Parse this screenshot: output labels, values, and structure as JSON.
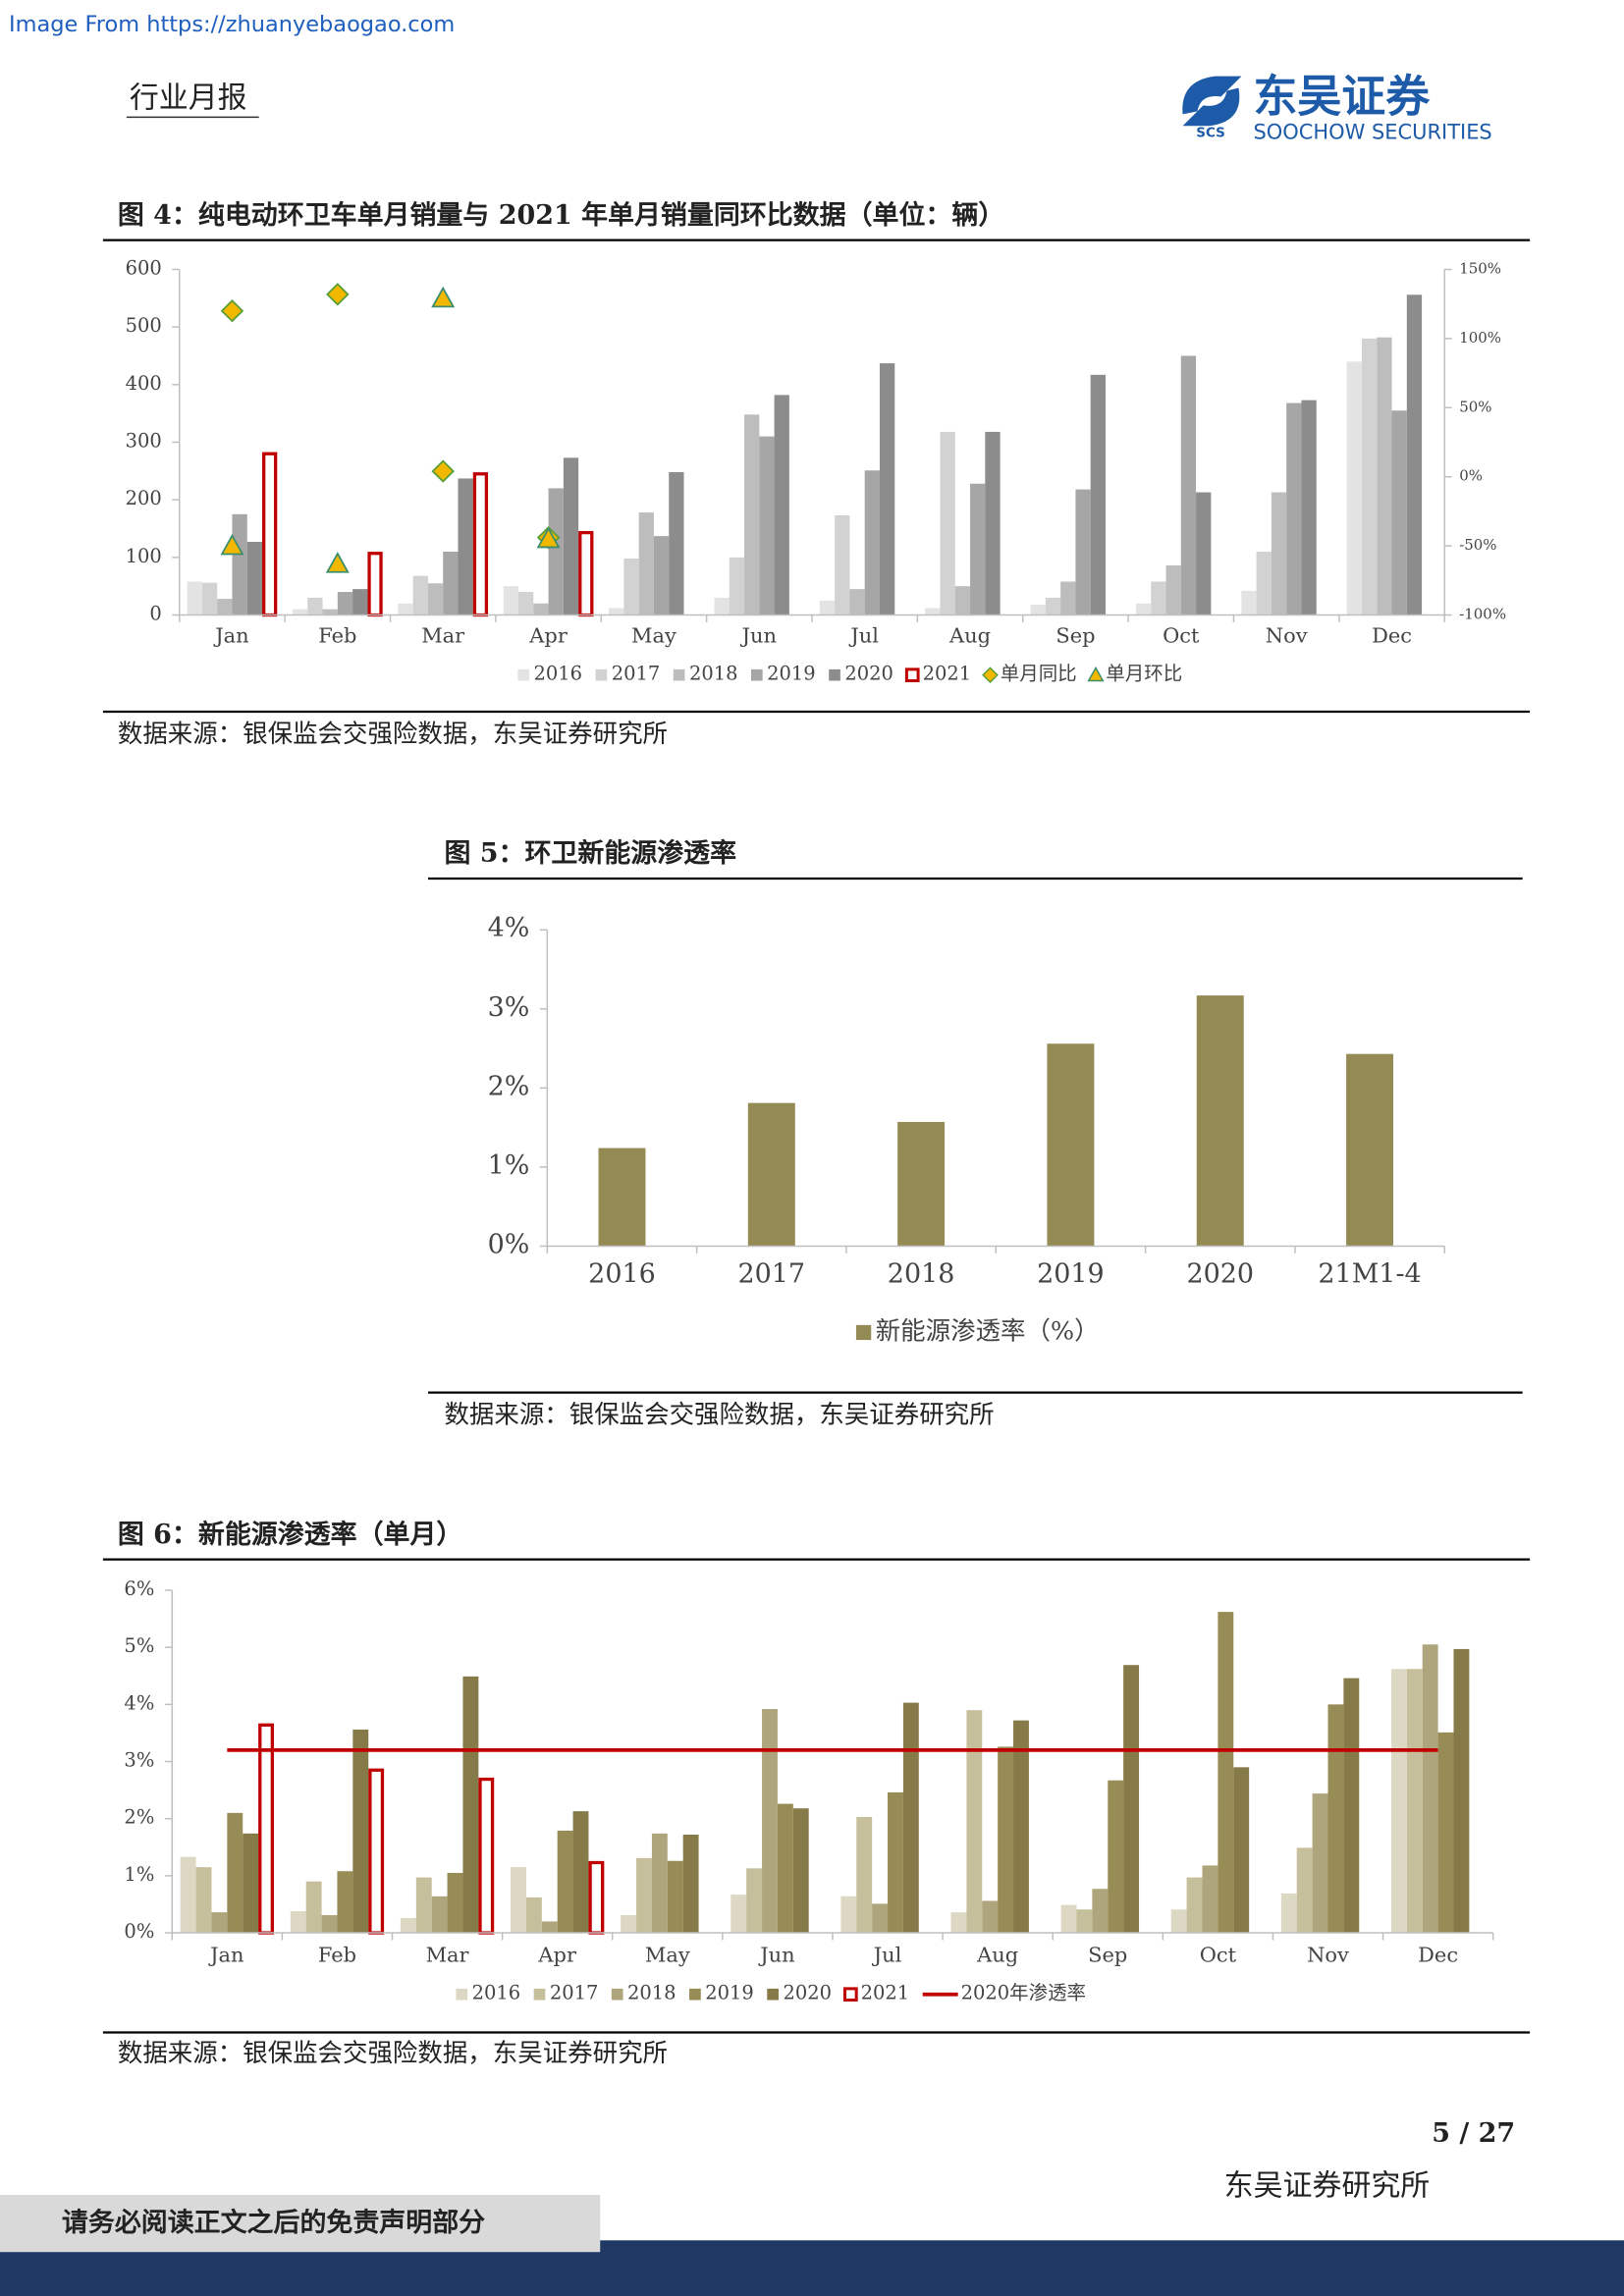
{
  "header": {
    "source_note": "Image From https://zhuanyebaogao.com",
    "report_type": "行业月报",
    "logo_cn": "东吴证券",
    "logo_en": "SOOCHOW SECURITIES",
    "logo_mark": "SCS"
  },
  "chart_data": [
    {
      "type": "bar",
      "title": "图 4：纯电动环卫车单月销量与 2021 年单月销量同环比数据（单位：辆）",
      "source": "数据来源：银保监会交强险数据，东吴证券研究所",
      "categories": [
        "Jan",
        "Feb",
        "Mar",
        "Apr",
        "May",
        "Jun",
        "Jul",
        "Aug",
        "Sep",
        "Oct",
        "Nov",
        "Dec"
      ],
      "ylim": [
        0,
        600
      ],
      "yticks": [
        0,
        100,
        200,
        300,
        400,
        500,
        600
      ],
      "y2lim": [
        -100,
        150
      ],
      "y2ticks": [
        {
          "value": -100,
          "label": "-100%"
        },
        {
          "value": -50,
          "label": "-50%"
        },
        {
          "value": 0,
          "label": "0%"
        },
        {
          "value": 50,
          "label": "50%"
        },
        {
          "value": 100,
          "label": "100%"
        },
        {
          "value": 150,
          "label": "150%"
        }
      ],
      "series": [
        {
          "name": "2016",
          "kind": "bar",
          "color": "#e3e3e3",
          "values": [
            58,
            10,
            20,
            50,
            12,
            30,
            25,
            12,
            18,
            20,
            42,
            440
          ]
        },
        {
          "name": "2017",
          "kind": "bar",
          "color": "#d2d2d2",
          "values": [
            56,
            30,
            68,
            40,
            98,
            100,
            173,
            318,
            30,
            58,
            110,
            480
          ]
        },
        {
          "name": "2018",
          "kind": "bar",
          "color": "#bdbdbd",
          "values": [
            28,
            10,
            55,
            20,
            178,
            348,
            45,
            50,
            58,
            86,
            213,
            482
          ]
        },
        {
          "name": "2019",
          "kind": "bar",
          "color": "#a6a6a6",
          "values": [
            175,
            40,
            110,
            220,
            137,
            310,
            251,
            228,
            218,
            450,
            368,
            355
          ]
        },
        {
          "name": "2020",
          "kind": "bar",
          "color": "#8c8c8c",
          "values": [
            127,
            45,
            237,
            273,
            248,
            382,
            437,
            318,
            417,
            213,
            373,
            556
          ]
        },
        {
          "name": "2021",
          "kind": "bar",
          "outline": true,
          "color": "#c00000",
          "values": [
            280,
            107,
            245,
            143,
            null,
            null,
            null,
            null,
            null,
            null,
            null,
            null
          ]
        },
        {
          "name": "单月同比",
          "kind": "scatter",
          "marker": "diamond",
          "axis": "y2",
          "color": "#f2b800",
          "edge": "#5a9e3a",
          "values": [
            120,
            132,
            4,
            -44,
            null,
            null,
            null,
            null,
            null,
            null,
            null,
            null
          ]
        },
        {
          "name": "单月环比",
          "kind": "scatter",
          "marker": "triangle",
          "axis": "y2",
          "color": "#f2b800",
          "edge": "#3b8f6e",
          "values": [
            -50,
            -63,
            129,
            -45,
            null,
            null,
            null,
            null,
            null,
            null,
            null,
            null
          ]
        }
      ]
    },
    {
      "type": "bar",
      "title": "图 5：环卫新能源渗透率",
      "source": "数据来源：银保监会交强险数据，东吴证券研究所",
      "categories": [
        "2016",
        "2017",
        "2018",
        "2019",
        "2020",
        "21M1-4"
      ],
      "ylim": [
        0,
        4
      ],
      "yticks": [
        {
          "value": 0,
          "label": "0%"
        },
        {
          "value": 1,
          "label": "1%"
        },
        {
          "value": 2,
          "label": "2%"
        },
        {
          "value": 3,
          "label": "3%"
        },
        {
          "value": 4,
          "label": "4%"
        }
      ],
      "series": [
        {
          "name": "新能源渗透率（%）",
          "kind": "bar",
          "color": "#948a54",
          "values": [
            1.24,
            1.81,
            1.57,
            2.56,
            3.17,
            2.43
          ]
        }
      ]
    },
    {
      "type": "bar",
      "title": "图 6：新能源渗透率（单月）",
      "source": "数据来源：银保监会交强险数据，东吴证券研究所",
      "categories": [
        "Jan",
        "Feb",
        "Mar",
        "Apr",
        "May",
        "Jun",
        "Jul",
        "Aug",
        "Sep",
        "Oct",
        "Nov",
        "Dec"
      ],
      "ylim": [
        0,
        6
      ],
      "yticks": [
        {
          "value": 0,
          "label": "0%"
        },
        {
          "value": 1,
          "label": "1%"
        },
        {
          "value": 2,
          "label": "2%"
        },
        {
          "value": 3,
          "label": "3%"
        },
        {
          "value": 4,
          "label": "4%"
        },
        {
          "value": 5,
          "label": "5%"
        },
        {
          "value": 6,
          "label": "6%"
        }
      ],
      "series": [
        {
          "name": "2016",
          "kind": "bar",
          "color": "#dcd8c4",
          "values": [
            1.33,
            0.38,
            0.26,
            1.15,
            0.31,
            0.67,
            0.64,
            0.36,
            0.49,
            0.41,
            0.69,
            4.62
          ]
        },
        {
          "name": "2017",
          "kind": "bar",
          "color": "#c6bf9c",
          "values": [
            1.15,
            0.9,
            0.97,
            0.62,
            1.31,
            1.13,
            2.03,
            3.9,
            0.41,
            0.97,
            1.49,
            4.62
          ]
        },
        {
          "name": "2018",
          "kind": "bar",
          "color": "#afa57d",
          "values": [
            0.36,
            0.31,
            0.64,
            0.2,
            1.74,
            3.92,
            0.51,
            0.56,
            0.77,
            1.18,
            2.44,
            5.05
          ]
        },
        {
          "name": "2019",
          "kind": "bar",
          "color": "#978c56",
          "values": [
            2.1,
            1.08,
            1.05,
            1.79,
            1.26,
            2.26,
            2.46,
            3.26,
            2.67,
            5.62,
            4.0,
            3.51
          ]
        },
        {
          "name": "2020",
          "kind": "bar",
          "color": "#857a48",
          "values": [
            1.74,
            3.56,
            4.49,
            2.13,
            1.72,
            2.18,
            4.03,
            3.72,
            4.69,
            2.9,
            4.46,
            4.97
          ]
        },
        {
          "name": "2021",
          "kind": "bar",
          "outline": true,
          "color": "#c00000",
          "values": [
            3.64,
            2.85,
            2.69,
            1.23,
            null,
            null,
            null,
            null,
            null,
            null,
            null,
            null
          ]
        },
        {
          "name": "2020年渗透率",
          "kind": "line",
          "color": "#c00000",
          "values": [
            3.2,
            3.2,
            3.2,
            3.2,
            3.2,
            3.2,
            3.2,
            3.2,
            3.2,
            3.2,
            3.2,
            3.2
          ]
        }
      ]
    }
  ],
  "footer": {
    "page": "5 / 27",
    "institute": "东吴证券研究所",
    "disclaimer": "请务必阅读正文之后的免责声明部分"
  }
}
